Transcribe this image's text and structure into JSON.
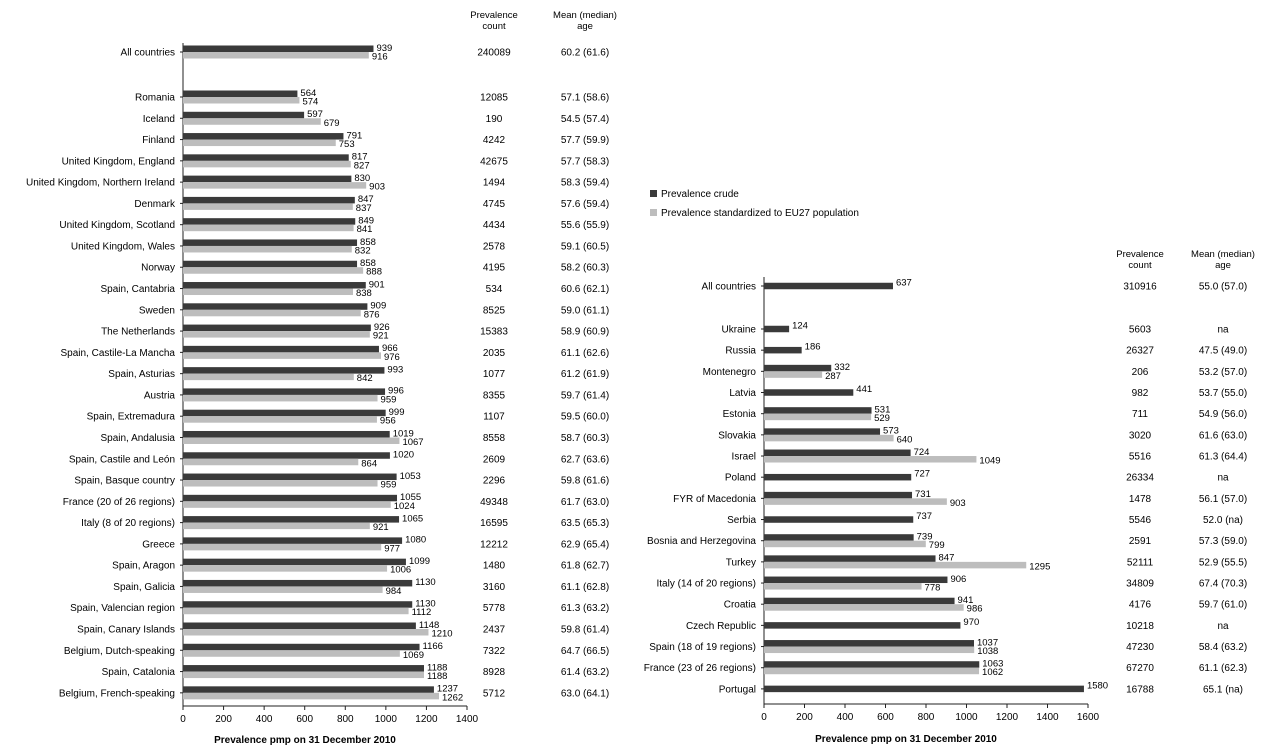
{
  "legend": {
    "crude": "Prevalence crude",
    "standardized": "Prevalence standardized to EU27 population",
    "crude_color": "#3a3a3a",
    "standardized_color": "#bdbdbd"
  },
  "chart_data": [
    {
      "type": "bar",
      "orientation": "horizontal",
      "xlabel": "Prevalence pmp on 31 December 2010",
      "xlim": [
        0,
        1400
      ],
      "xticks": [
        0,
        200,
        400,
        600,
        800,
        1000,
        1200,
        1400
      ],
      "grid": false,
      "column_headers": {
        "count": [
          "Prevalence",
          "count"
        ],
        "age": [
          "Mean (median)",
          "age"
        ]
      },
      "rows": [
        {
          "name": "All countries",
          "crude": 939,
          "standardized": 916,
          "count": "240089",
          "age": "60.2 (61.6)"
        },
        {
          "name": "Romania",
          "crude": 564,
          "standardized": 574,
          "count": "12085",
          "age": "57.1 (58.6)"
        },
        {
          "name": "Iceland",
          "crude": 597,
          "standardized": 679,
          "count": "190",
          "age": "54.5 (57.4)"
        },
        {
          "name": "Finland",
          "crude": 791,
          "standardized": 753,
          "count": "4242",
          "age": "57.7 (59.9)"
        },
        {
          "name": "United Kingdom, England",
          "crude": 817,
          "standardized": 827,
          "count": "42675",
          "age": "57.7 (58.3)"
        },
        {
          "name": "United Kingdom, Northern Ireland",
          "crude": 830,
          "standardized": 903,
          "count": "1494",
          "age": "58.3 (59.4)"
        },
        {
          "name": "Denmark",
          "crude": 847,
          "standardized": 837,
          "count": "4745",
          "age": "57.6 (59.4)"
        },
        {
          "name": "United Kingdom, Scotland",
          "crude": 849,
          "standardized": 841,
          "count": "4434",
          "age": "55.6 (55.9)"
        },
        {
          "name": "United Kingdom, Wales",
          "crude": 858,
          "standardized": 832,
          "count": "2578",
          "age": "59.1 (60.5)"
        },
        {
          "name": "Norway",
          "crude": 858,
          "standardized": 888,
          "count": "4195",
          "age": "58.2 (60.3)"
        },
        {
          "name": "Spain, Cantabria",
          "crude": 901,
          "standardized": 838,
          "count": "534",
          "age": "60.6 (62.1)"
        },
        {
          "name": "Sweden",
          "crude": 909,
          "standardized": 876,
          "count": "8525",
          "age": "59.0 (61.1)"
        },
        {
          "name": "The Netherlands",
          "crude": 926,
          "standardized": 921,
          "count": "15383",
          "age": "58.9 (60.9)"
        },
        {
          "name": "Spain, Castile-La Mancha",
          "crude": 966,
          "standardized": 976,
          "count": "2035",
          "age": "61.1 (62.6)"
        },
        {
          "name": "Spain, Asturias",
          "crude": 993,
          "standardized": 842,
          "count": "1077",
          "age": "61.2 (61.9)"
        },
        {
          "name": "Austria",
          "crude": 996,
          "standardized": 959,
          "count": "8355",
          "age": "59.7 (61.4)"
        },
        {
          "name": "Spain, Extremadura",
          "crude": 999,
          "standardized": 956,
          "count": "1107",
          "age": "59.5 (60.0)"
        },
        {
          "name": "Spain, Andalusia",
          "crude": 1019,
          "standardized": 1067,
          "count": "8558",
          "age": "58.7 (60.3)"
        },
        {
          "name": "Spain, Castile and León",
          "crude": 1020,
          "standardized": 864,
          "count": "2609",
          "age": "62.7 (63.6)"
        },
        {
          "name": "Spain, Basque country",
          "crude": 1053,
          "standardized": 959,
          "count": "2296",
          "age": "59.8 (61.6)"
        },
        {
          "name": "France (20 of 26 regions)",
          "crude": 1055,
          "standardized": 1024,
          "count": "49348",
          "age": "61.7 (63.0)"
        },
        {
          "name": "Italy (8 of 20 regions)",
          "crude": 1065,
          "standardized": 921,
          "count": "16595",
          "age": "63.5 (65.3)"
        },
        {
          "name": "Greece",
          "crude": 1080,
          "standardized": 977,
          "count": "12212",
          "age": "62.9 (65.4)"
        },
        {
          "name": "Spain, Aragon",
          "crude": 1099,
          "standardized": 1006,
          "count": "1480",
          "age": "61.8 (62.7)"
        },
        {
          "name": "Spain, Galicia",
          "crude": 1130,
          "standardized": 984,
          "count": "3160",
          "age": "61.1 (62.8)"
        },
        {
          "name": "Spain, Valencian region",
          "crude": 1130,
          "standardized": 1112,
          "count": "5778",
          "age": "61.3 (63.2)"
        },
        {
          "name": "Spain, Canary Islands",
          "crude": 1148,
          "standardized": 1210,
          "count": "2437",
          "age": "59.8 (61.4)"
        },
        {
          "name": "Belgium, Dutch-speaking",
          "crude": 1166,
          "standardized": 1069,
          "count": "7322",
          "age": "64.7 (66.5)"
        },
        {
          "name": "Spain, Catalonia",
          "crude": 1188,
          "standardized": 1188,
          "count": "8928",
          "age": "61.4 (63.2)"
        },
        {
          "name": "Belgium, French-speaking",
          "crude": 1237,
          "standardized": 1262,
          "count": "5712",
          "age": "63.0 (64.1)"
        }
      ]
    },
    {
      "type": "bar",
      "orientation": "horizontal",
      "xlabel": "Prevalence pmp on 31 December 2010",
      "xlim": [
        0,
        1600
      ],
      "xticks": [
        0,
        200,
        400,
        600,
        800,
        1000,
        1200,
        1400,
        1600
      ],
      "grid": false,
      "column_headers": {
        "count": [
          "Prevalence",
          "count"
        ],
        "age": [
          "Mean (median)",
          "age"
        ]
      },
      "rows": [
        {
          "name": "All countries",
          "crude": 637,
          "standardized": null,
          "count": "310916",
          "age": "55.0 (57.0)"
        },
        {
          "name": "Ukraine",
          "crude": 124,
          "standardized": null,
          "count": "5603",
          "age": "na"
        },
        {
          "name": "Russia",
          "crude": 186,
          "standardized": null,
          "count": "26327",
          "age": "47.5 (49.0)"
        },
        {
          "name": "Montenegro",
          "crude": 332,
          "standardized": 287,
          "count": "206",
          "age": "53.2 (57.0)"
        },
        {
          "name": "Latvia",
          "crude": 441,
          "standardized": null,
          "count": "982",
          "age": "53.7 (55.0)"
        },
        {
          "name": "Estonia",
          "crude": 531,
          "standardized": 529,
          "count": "711",
          "age": "54.9 (56.0)"
        },
        {
          "name": "Slovakia",
          "crude": 573,
          "standardized": 640,
          "count": "3020",
          "age": "61.6 (63.0)"
        },
        {
          "name": "Israel",
          "crude": 724,
          "standardized": 1049,
          "count": "5516",
          "age": "61.3 (64.4)"
        },
        {
          "name": "Poland",
          "crude": 727,
          "standardized": null,
          "count": "26334",
          "age": "na"
        },
        {
          "name": "FYR of Macedonia",
          "crude": 731,
          "standardized": 903,
          "count": "1478",
          "age": "56.1 (57.0)"
        },
        {
          "name": "Serbia",
          "crude": 737,
          "standardized": null,
          "count": "5546",
          "age": "52.0 (na)"
        },
        {
          "name": "Bosnia and Herzegovina",
          "crude": 739,
          "standardized": 799,
          "count": "2591",
          "age": "57.3 (59.0)"
        },
        {
          "name": "Turkey",
          "crude": 847,
          "standardized": 1295,
          "count": "52111",
          "age": "52.9 (55.5)"
        },
        {
          "name": "Italy (14 of 20 regions)",
          "crude": 906,
          "standardized": 778,
          "count": "34809",
          "age": "67.4 (70.3)"
        },
        {
          "name": "Croatia",
          "crude": 941,
          "standardized": 986,
          "count": "4176",
          "age": "59.7 (61.0)"
        },
        {
          "name": "Czech Republic",
          "crude": 970,
          "standardized": null,
          "count": "10218",
          "age": "na"
        },
        {
          "name": "Spain (18 of 19 regions)",
          "crude": 1037,
          "standardized": 1038,
          "count": "47230",
          "age": "58.4 (63.2)"
        },
        {
          "name": "France (23 of 26 regions)",
          "crude": 1063,
          "standardized": 1062,
          "count": "67270",
          "age": "61.1 (62.3)"
        },
        {
          "name": "Portugal",
          "crude": 1580,
          "standardized": null,
          "count": "16788",
          "age": "65.1 (na)"
        }
      ]
    }
  ]
}
